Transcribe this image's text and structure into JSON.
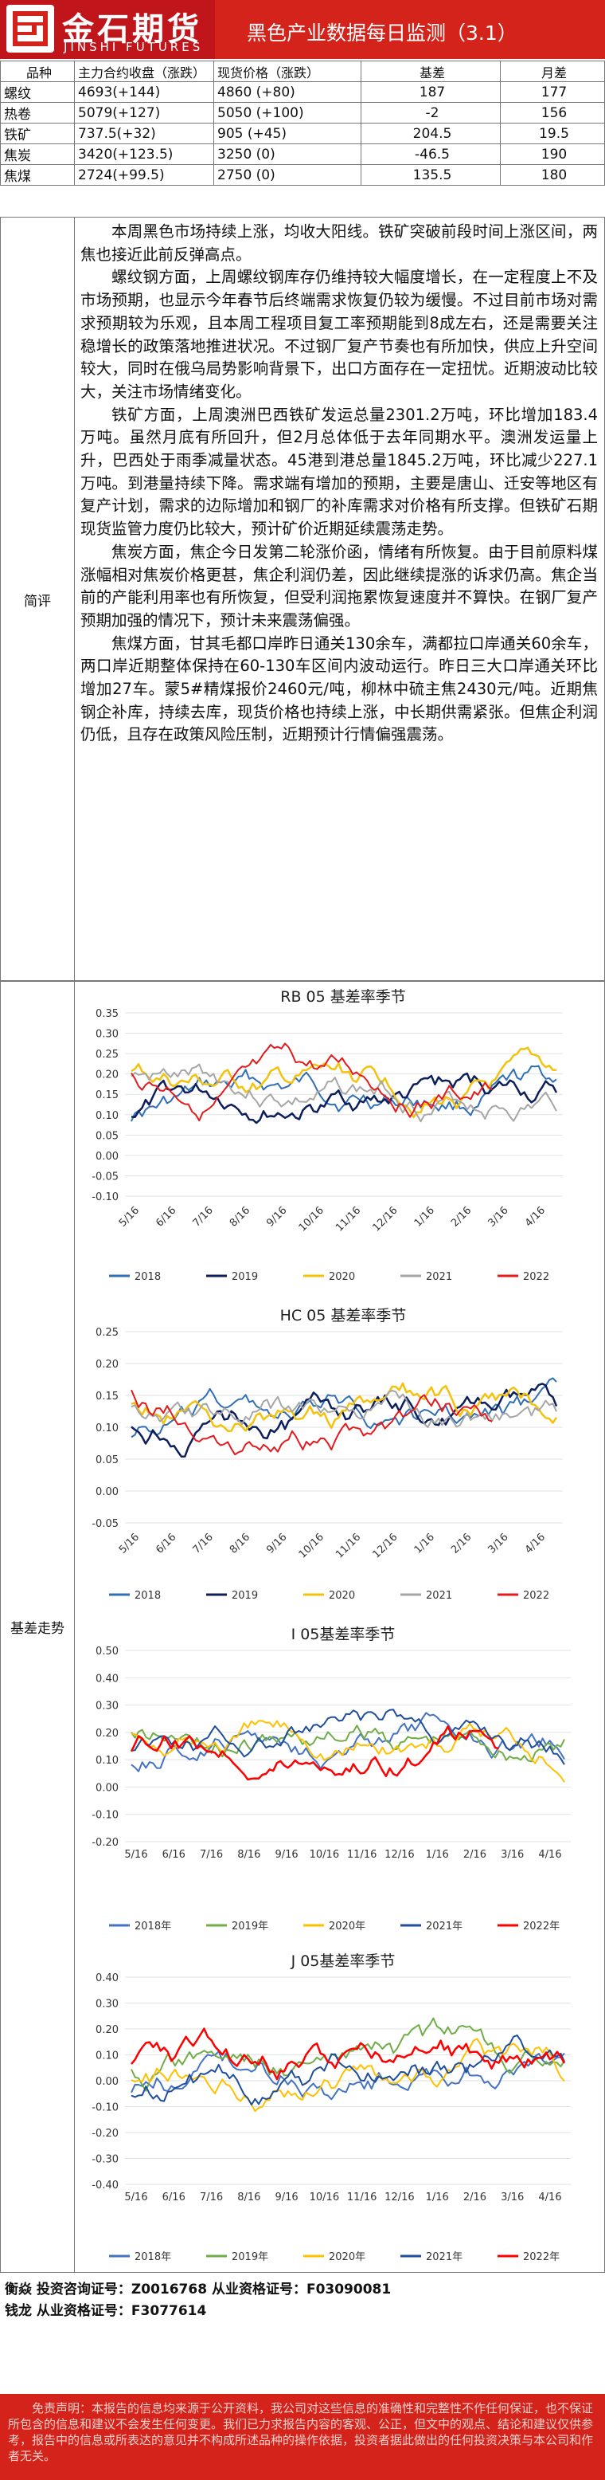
{
  "header": {
    "logo_cn": "金石期货",
    "logo_en": "JINSHI FUTURES",
    "title": "黑色产业数据每日监测（3.1）"
  },
  "price_table": {
    "headers": [
      "品种",
      "主力合约收盘（涨跌）",
      "现货价格（涨跌）",
      "基差",
      "月差"
    ],
    "rows": [
      [
        "螺纹",
        "4693(+144)",
        "4860 (+80)",
        "187",
        "177"
      ],
      [
        "热卷",
        "5079(+127)",
        "5050 (+100)",
        "-2",
        "156"
      ],
      [
        "铁矿",
        "737.5(+32)",
        "905 (+45)",
        "204.5",
        "19.5"
      ],
      [
        "焦炭",
        "3420(+123.5)",
        "3250 (0)",
        "-46.5",
        "190"
      ],
      [
        "焦煤",
        "2724(+99.5)",
        "2750 (0)",
        "135.5",
        "180"
      ]
    ]
  },
  "commentary": {
    "label": "简评",
    "paragraphs": [
      "本周黑色市场持续上涨，均收大阳线。铁矿突破前段时间上涨区间，两焦也接近此前反弹高点。",
      "螺纹钢方面，上周螺纹钢库存仍维持较大幅度增长，在一定程度上不及市场预期，也显示今年春节后终端需求恢复仍较为缓慢。不过目前市场对需求预期较为乐观，且本周工程项目复工率预期能到8成左右，还是需要关注稳增长的政策落地推进状况。不过钢厂复产节奏也有所加快，供应上升空间较大，同时在俄乌局势影响背景下，出口方面存在一定扭忧。近期波动比较大，关注市场情绪变化。",
      "铁矿方面，上周澳洲巴西铁矿发运总量2301.2万吨，环比增加183.4万吨。虽然月底有所回升，但2月总体低于去年同期水平。澳洲发运量上升，巴西处于雨季减量状态。45港到港总量1845.2万吨，环比减少227.1万吨。到港量持续下降。需求端有增加的预期，主要是唐山、迁安等地区有复产计划，需求的边际增加和钢厂的补库需求对价格有所支撑。但铁矿石期现货监管力度仍比较大，预计矿价近期延续震荡走势。",
      "焦炭方面，焦企今日发第二轮涨价函，情绪有所恢复。由于目前原料煤涨幅相对焦炭价格更甚，焦企利润仍差，因此继续提涨的诉求仍高。焦企当前的产能利用率也有所恢复，但受利润拖累恢复速度并不算快。在钢厂复产预期加强的情况下，预计未来震荡偏强。",
      "焦煤方面，甘其毛都口岸昨日通关130余车，满都拉口岸通关60余车，两口岸近期整体保持在60-130车区间内波动运行。昨日三大口岸通关环比增加27车。蒙5#精煤报价2460元/吨，柳林中硫主焦2430元/吨。近期焦钢企补库，持续去库，现货价格也持续上涨，中长期供需紧张。但焦企利润仍低，且存在政策风险压制，近期预计行情偏强震荡。"
    ]
  },
  "basis_section": {
    "label": "基差走势",
    "charts": [
      {
        "title": "RB 05 基差率季节",
        "yticks": [
          "0.35",
          "0.30",
          "0.25",
          "0.20",
          "0.15",
          "0.10",
          "0.05",
          "0.00",
          "-0.05",
          "-0.10"
        ],
        "xticks": [
          "5/16",
          "6/16",
          "7/16",
          "8/16",
          "9/16",
          "10/16",
          "11/16",
          "12/16",
          "1/16",
          "2/16",
          "3/16",
          "4/16"
        ],
        "legend": [
          "2018",
          "2019",
          "2020",
          "2021",
          "2022"
        ]
      },
      {
        "title": "HC 05 基差率季节",
        "yticks": [
          "0.25",
          "0.20",
          "0.15",
          "0.10",
          "0.05",
          "0.00",
          "-0.05"
        ],
        "xticks": [
          "5/16",
          "6/16",
          "7/16",
          "8/16",
          "9/16",
          "10/16",
          "11/16",
          "12/16",
          "1/16",
          "2/16",
          "3/16",
          "4/16"
        ],
        "legend": [
          "2018",
          "2019",
          "2020",
          "2021",
          "2022"
        ]
      },
      {
        "title": "I 05基差率季节",
        "yticks": [
          "0.50",
          "0.40",
          "0.30",
          "0.20",
          "0.10",
          "0.00",
          "-0.10",
          "-0.20"
        ],
        "xticks": [
          "5/16",
          "6/16",
          "7/16",
          "8/16",
          "9/16",
          "10/16",
          "11/16",
          "12/16",
          "1/16",
          "2/16",
          "3/16",
          "4/16"
        ],
        "legend": [
          "2018年",
          "2019年",
          "2020年",
          "2021年",
          "2022年"
        ]
      },
      {
        "title": "J 05基差率季节",
        "yticks": [
          "0.40",
          "0.30",
          "0.20",
          "0.10",
          "0.00",
          "-0.10",
          "-0.20",
          "-0.30",
          "-0.40"
        ],
        "xticks": [
          "5/16",
          "6/16",
          "7/16",
          "8/16",
          "9/16",
          "10/16",
          "11/16",
          "12/16",
          "1/16",
          "2/16",
          "3/16",
          "4/16"
        ],
        "legend": [
          "2018年",
          "2019年",
          "2020年",
          "2021年",
          "2022年"
        ]
      }
    ],
    "colors": [
      "#2f6fb7",
      "#0c1f5c",
      "#f4c20d",
      "#a6a6a6",
      "#e41a1c"
    ],
    "colors_ij": [
      "#4472c4",
      "#70ad47",
      "#ffc000",
      "#1f4e9c",
      "#ff0000"
    ]
  },
  "footer": {
    "line1": "衡焱 投资咨询证号：Z0016768 从业资格证号：F03090081",
    "line2": "钱龙 从业资格证号：F3077614"
  },
  "disclaimer": "免责声明：本报告的信息均来源于公开资料，我公司对这些信息的准确性和完整性不作任何保证，也不保证所包含的信息和建议不会发生任何变更。我们已力求报告内容的客观、公正，但文中的观点、结论和建议仅供参考，报告中的信息或所表达的意见并不构成所述品种的操作依据，投资者据此做出的任何投资决策与本公司和作者无关。"
}
